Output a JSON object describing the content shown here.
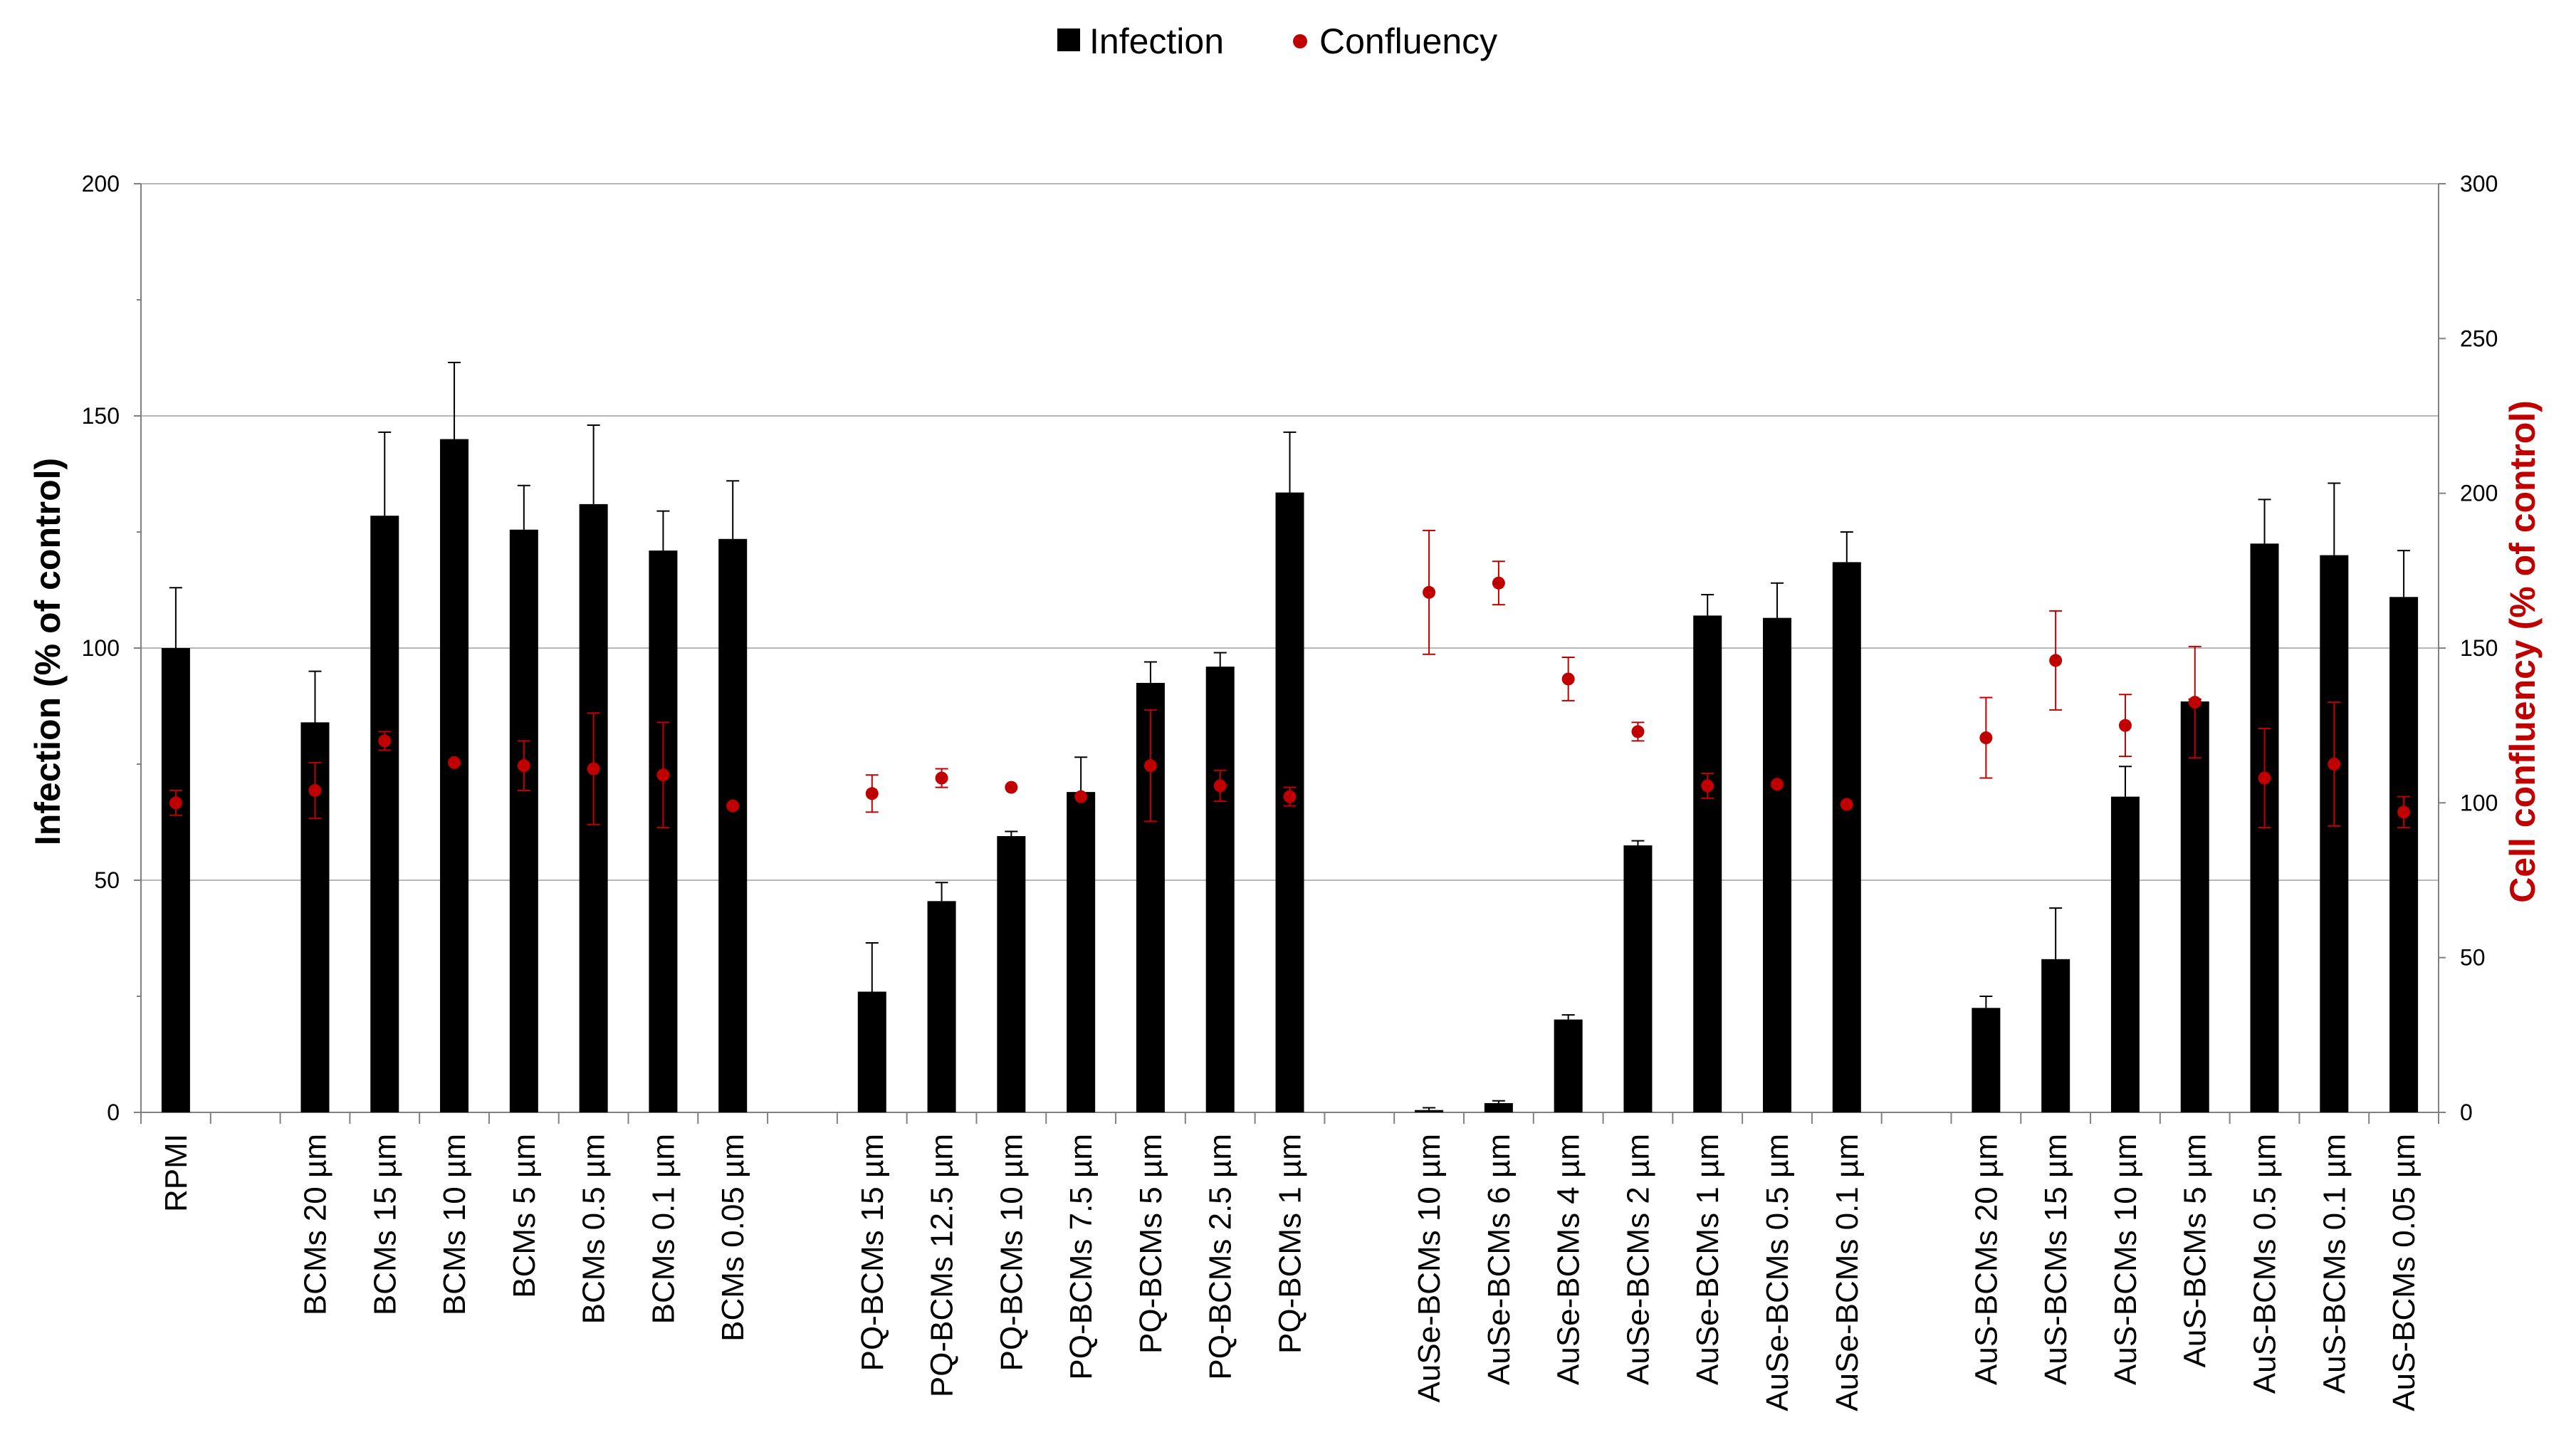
{
  "chart_data": {
    "type": "bar",
    "legend": {
      "placement": "top-center",
      "entries": [
        {
          "name": "Infection",
          "symbol": "square",
          "color": "#000000"
        },
        {
          "name": "Confluency",
          "symbol": "circle",
          "color": "#c00000"
        }
      ]
    },
    "left_axis": {
      "title": "Infection (% of control)",
      "range": [
        0,
        200
      ],
      "ticks": [
        "0",
        "50",
        "100",
        "150",
        "200"
      ],
      "color": "#000000"
    },
    "right_axis": {
      "title": "Cell confluency (% of control)",
      "range": [
        0,
        300
      ],
      "ticks": [
        "0",
        "50",
        "100",
        "150",
        "200",
        "250",
        "300"
      ],
      "color": "#c00000"
    },
    "gridlines": true,
    "categories": [
      "RPMI",
      "",
      "BCMs 20 µm",
      "BCMs 15 µm",
      "BCMs 10 µm",
      "BCMs 5 µm",
      "BCMs 0.5 µm",
      "BCMs 0.1 µm",
      "BCMs 0.05 µm",
      "",
      "PQ-BCMs 15 µm",
      "PQ-BCMs 12.5 µm",
      "PQ-BCMs 10 µm",
      "PQ-BCMs 7.5 µm",
      "PQ-BCMs 5 µm",
      "PQ-BCMs 2.5 µm",
      "PQ-BCMs 1 µm",
      "",
      "AuSe-BCMs 10 µm",
      "AuSe-BCMs 6 µm",
      "AuSe-BCMs 4 µm",
      "AuSe-BCMs 2 µm",
      "AuSe-BCMs 1 µm",
      "AuSe-BCMs 0.5 µm",
      "AuSe-BCMs 0.1 µm",
      "",
      "AuS-BCMs 20 µm",
      "AuS-BCMs 15 µm",
      "AuS-BCMs 10 µm",
      "AuS-BCMs 5 µm",
      "AuS-BCMs 0.5 µm",
      "AuS-BCMs 0.1 µm",
      "AuS-BCMs 0.05 µm"
    ],
    "series": [
      {
        "name": "Infection",
        "axis": "left",
        "values": [
          100,
          null,
          84,
          128.5,
          145,
          125.5,
          131,
          121,
          123.5,
          null,
          26,
          45.5,
          59.5,
          69,
          92.5,
          96,
          133.5,
          null,
          0.5,
          2,
          20,
          57.5,
          107,
          106.5,
          118.5,
          null,
          22.5,
          33,
          68,
          88.5,
          122.5,
          120,
          111
        ],
        "errors": [
          13,
          null,
          11,
          18,
          16.5,
          9.5,
          17,
          8.5,
          12.5,
          null,
          10.5,
          4,
          1,
          7.5,
          4.5,
          3,
          13,
          null,
          0.5,
          0.5,
          1,
          1,
          4.5,
          7.5,
          6.5,
          null,
          2.5,
          11,
          6.5,
          0.5,
          9.5,
          15.5,
          10
        ]
      },
      {
        "name": "Confluency",
        "axis": "right",
        "values": [
          100,
          null,
          104,
          120,
          113,
          112,
          111,
          109,
          99,
          null,
          103,
          108,
          105,
          102,
          112,
          105.5,
          102,
          null,
          168,
          171,
          140,
          123,
          105.5,
          106,
          99.5,
          null,
          121,
          146,
          125,
          132.5,
          108,
          112.5,
          97
        ],
        "errors": [
          4,
          null,
          9,
          3,
          0,
          8,
          18,
          17,
          0,
          null,
          6,
          3,
          0,
          0,
          18,
          5,
          3,
          null,
          20,
          7,
          7,
          3,
          4,
          0,
          0,
          null,
          13,
          16,
          10,
          18,
          16,
          20,
          5
        ]
      }
    ]
  }
}
